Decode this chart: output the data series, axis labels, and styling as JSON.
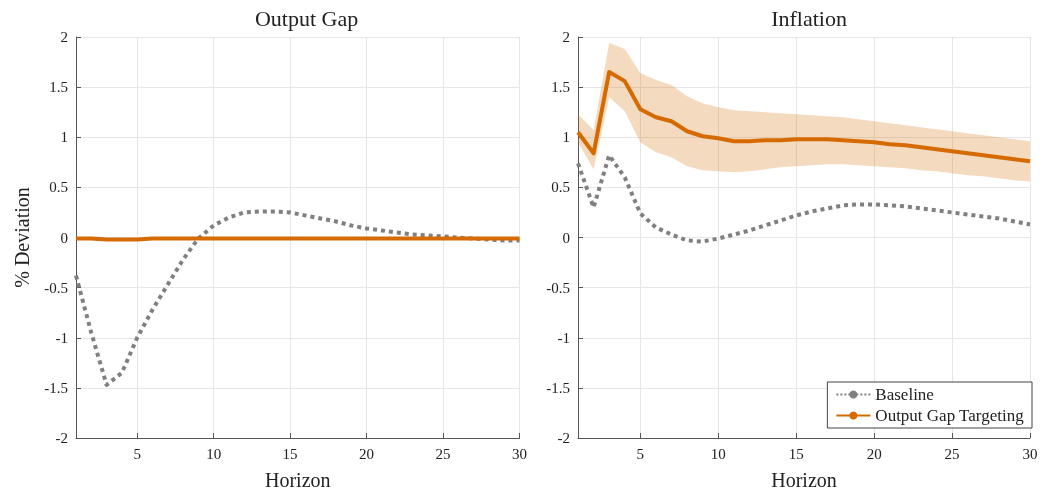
{
  "chart_data": [
    {
      "type": "line",
      "title": "Output Gap",
      "xlabel": "Horizon",
      "ylabel": "% Deviation",
      "x": [
        1,
        2,
        3,
        4,
        5,
        6,
        7,
        8,
        9,
        10,
        11,
        12,
        13,
        14,
        15,
        16,
        17,
        18,
        19,
        20,
        21,
        22,
        23,
        24,
        25,
        26,
        27,
        28,
        29,
        30
      ],
      "xlim": [
        1,
        30
      ],
      "xticks": [
        5,
        10,
        15,
        20,
        25,
        30
      ],
      "ylim": [
        -2,
        2
      ],
      "yticks": [
        -2,
        -1.5,
        -1,
        -0.5,
        0,
        0.5,
        1,
        1.5,
        2
      ],
      "grid": true,
      "legend": false,
      "marker": "none",
      "series": [
        {
          "color": "#808080",
          "line_style": "dotted",
          "values": [
            -0.38,
            -0.95,
            -1.47,
            -1.35,
            -1.0,
            -0.72,
            -0.47,
            -0.22,
            -0.01,
            0.12,
            0.2,
            0.25,
            0.26,
            0.26,
            0.25,
            0.22,
            0.19,
            0.16,
            0.12,
            0.09,
            0.07,
            0.05,
            0.03,
            0.02,
            0.01,
            0.0,
            -0.01,
            -0.02,
            -0.03,
            -0.03
          ]
        },
        {
          "color": "#d46a00",
          "line_style": "solid",
          "values": [
            -0.01,
            -0.01,
            -0.02,
            -0.02,
            -0.02,
            -0.01,
            -0.01,
            -0.01,
            -0.01,
            -0.01,
            -0.01,
            -0.01,
            -0.01,
            -0.01,
            -0.01,
            -0.01,
            -0.01,
            -0.01,
            -0.01,
            -0.01,
            -0.01,
            -0.01,
            -0.01,
            -0.01,
            -0.01,
            -0.01,
            -0.01,
            -0.01,
            -0.01,
            -0.01
          ]
        }
      ]
    },
    {
      "type": "line",
      "title": "Inflation",
      "xlabel": "Horizon",
      "x": [
        1,
        2,
        3,
        4,
        5,
        6,
        7,
        8,
        9,
        10,
        11,
        12,
        13,
        14,
        15,
        16,
        17,
        18,
        19,
        20,
        21,
        22,
        23,
        24,
        25,
        26,
        27,
        28,
        29,
        30
      ],
      "xlim": [
        1,
        30
      ],
      "xticks": [
        5,
        10,
        15,
        20,
        25,
        30
      ],
      "ylim": [
        -2,
        2
      ],
      "yticks": [
        -2,
        -1.5,
        -1,
        -0.5,
        0,
        0.5,
        1,
        1.5,
        2
      ],
      "grid": true,
      "legend": "bottom right",
      "marker": "none",
      "series": [
        {
          "name": "Baseline",
          "color": "#808080",
          "line_style": "dotted",
          "values": [
            0.74,
            0.3,
            0.82,
            0.6,
            0.24,
            0.1,
            0.03,
            -0.03,
            -0.04,
            -0.01,
            0.03,
            0.07,
            0.12,
            0.17,
            0.22,
            0.26,
            0.29,
            0.32,
            0.33,
            0.33,
            0.32,
            0.31,
            0.29,
            0.27,
            0.25,
            0.23,
            0.21,
            0.19,
            0.16,
            0.13
          ]
        },
        {
          "name": "Output Gap Targeting",
          "color": "#d46a00",
          "line_style": "solid",
          "values": [
            1.05,
            0.84,
            1.65,
            1.56,
            1.28,
            1.2,
            1.16,
            1.06,
            1.01,
            0.99,
            0.96,
            0.96,
            0.97,
            0.97,
            0.98,
            0.98,
            0.98,
            0.97,
            0.96,
            0.95,
            0.93,
            0.92,
            0.9,
            0.88,
            0.86,
            0.84,
            0.82,
            0.8,
            0.78,
            0.76
          ],
          "lower": [
            0.95,
            0.68,
            1.4,
            1.26,
            0.95,
            0.85,
            0.8,
            0.71,
            0.67,
            0.66,
            0.65,
            0.66,
            0.68,
            0.7,
            0.71,
            0.72,
            0.73,
            0.73,
            0.72,
            0.71,
            0.7,
            0.69,
            0.67,
            0.66,
            0.64,
            0.62,
            0.61,
            0.59,
            0.57,
            0.56
          ],
          "upper": [
            1.23,
            1.07,
            1.94,
            1.88,
            1.64,
            1.57,
            1.52,
            1.41,
            1.34,
            1.3,
            1.27,
            1.26,
            1.25,
            1.24,
            1.23,
            1.22,
            1.21,
            1.2,
            1.18,
            1.16,
            1.14,
            1.12,
            1.1,
            1.08,
            1.06,
            1.04,
            1.02,
            1.0,
            0.98,
            0.96
          ]
        }
      ]
    }
  ]
}
